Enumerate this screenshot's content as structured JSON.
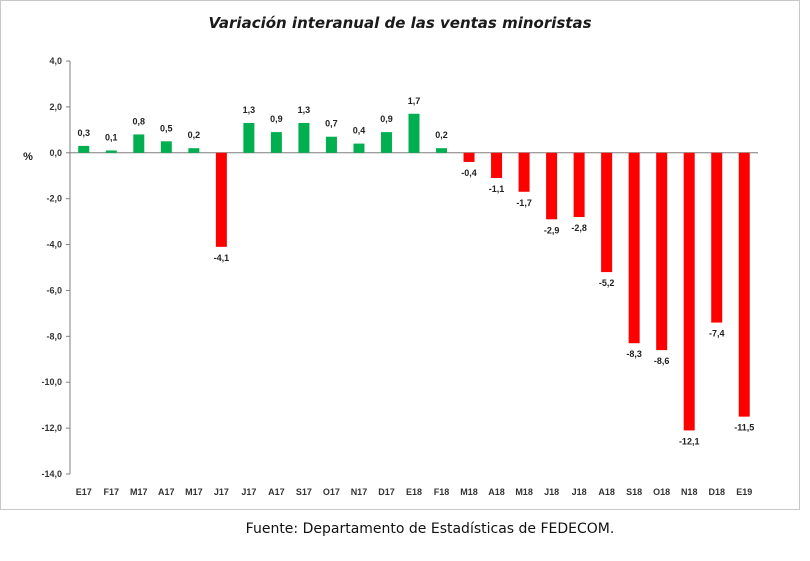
{
  "chart_data": {
    "type": "bar",
    "title": "Variación interanual de las ventas minoristas",
    "ylabel": "%",
    "xlabel": "",
    "ylim": [
      -14,
      4
    ],
    "yticks": [
      "4,0",
      "2,0",
      "0,0",
      "-2,0",
      "-4,0",
      "-6,0",
      "-8,0",
      "-10,0",
      "-12,0",
      "-14,0"
    ],
    "ytick_values": [
      4,
      2,
      0,
      -2,
      -4,
      -6,
      -8,
      -10,
      -12,
      -14
    ],
    "categories": [
      "E17",
      "F17",
      "M17",
      "A17",
      "M17",
      "J17",
      "J17",
      "A17",
      "S17",
      "O17",
      "N17",
      "D17",
      "E18",
      "F18",
      "M18",
      "A18",
      "M18",
      "J18",
      "J18",
      "A18",
      "S18",
      "O18",
      "N18",
      "D18",
      "E19"
    ],
    "values": [
      0.3,
      0.1,
      0.8,
      0.5,
      0.2,
      -4.1,
      1.3,
      0.9,
      1.3,
      0.7,
      0.4,
      0.9,
      1.7,
      0.2,
      -0.4,
      -1.1,
      -1.7,
      -2.9,
      -2.8,
      -5.2,
      -8.3,
      -8.6,
      -12.1,
      -7.4,
      -11.5
    ],
    "data_labels": [
      "0,3",
      "0,1",
      "0,8",
      "0,5",
      "0,2",
      "-4,1",
      "1,3",
      "0,9",
      "1,3",
      "0,7",
      "0,4",
      "0,9",
      "1,7",
      "0,2",
      "-0,4",
      "-1,1",
      "-1,7",
      "-2,9",
      "-2,8",
      "-5,2",
      "-8,3",
      "-8,6",
      "-12,1",
      "-7,4",
      "-11,5"
    ],
    "grid": false,
    "colors": {
      "positive": "#00b050",
      "negative": "#ff0000"
    }
  },
  "source": "Fuente: Departamento de Estadísticas de FEDECOM."
}
